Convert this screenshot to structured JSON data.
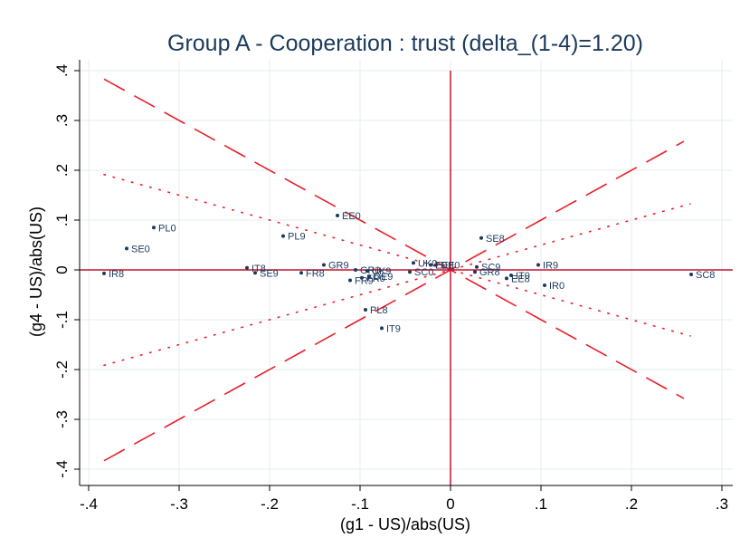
{
  "chart_data": {
    "type": "scatter",
    "title": "Group A - Cooperation : trust (delta_(1-4)=1.20)",
    "xlabel": "(g1 - US)/abs(US)",
    "ylabel": "(g4 - US)/abs(US)",
    "xlim": [
      -0.4,
      0.3
    ],
    "ylim": [
      -0.4,
      0.4
    ],
    "x_ticks": [
      -0.4,
      -0.3,
      -0.2,
      -0.1,
      0,
      0.1,
      0.2,
      0.3
    ],
    "y_ticks": [
      -0.4,
      -0.3,
      -0.2,
      -0.1,
      0,
      0.1,
      0.2,
      0.3,
      0.4
    ],
    "x_tick_labels": [
      "-.4",
      "-.3",
      "-.2",
      "-.1",
      "0",
      ".1",
      ".2",
      ".3"
    ],
    "y_tick_labels": [
      "-.4",
      "-.3",
      "-.2",
      "-.1",
      "0",
      ".1",
      ".2",
      ".3",
      ".4"
    ],
    "grid": true,
    "legend": "none",
    "colors": {
      "title": "#1b3a5c",
      "points": "#1b3a5c",
      "ref_lines": "#e8202a",
      "axis_cross": "#c8102e",
      "grid": "#e4eeee"
    },
    "reference_lines": {
      "dashed_slopes": [
        1,
        -1
      ],
      "dotted_slopes": [
        0.5,
        -0.5
      ],
      "x_range": [
        -0.383,
        0.258
      ],
      "dotted_x_range": [
        -0.383,
        0.265
      ]
    },
    "points": [
      {
        "label": "IR8",
        "x": -0.383,
        "y": -0.007
      },
      {
        "label": "SE0",
        "x": -0.358,
        "y": 0.043
      },
      {
        "label": "PL0",
        "x": -0.328,
        "y": 0.085
      },
      {
        "label": "IT8",
        "x": -0.225,
        "y": 0.004
      },
      {
        "label": "SE9",
        "x": -0.216,
        "y": -0.006
      },
      {
        "label": "PL9",
        "x": -0.185,
        "y": 0.068
      },
      {
        "label": "FR8",
        "x": -0.165,
        "y": -0.006
      },
      {
        "label": "GR9",
        "x": -0.14,
        "y": 0.01
      },
      {
        "label": "EE0",
        "x": -0.125,
        "y": 0.109
      },
      {
        "label": "FR9",
        "x": -0.111,
        "y": -0.021
      },
      {
        "label": "GR0",
        "x": -0.105,
        "y": 0.0
      },
      {
        "label": "UK9",
        "x": -0.092,
        "y": -0.002
      },
      {
        "label": "FR0",
        "x": -0.098,
        "y": -0.016
      },
      {
        "label": "PL8",
        "x": -0.094,
        "y": -0.08
      },
      {
        "label": "DE9",
        "x": -0.09,
        "y": -0.013
      },
      {
        "label": "IT9",
        "x": -0.076,
        "y": -0.117
      },
      {
        "label": "SC0",
        "x": -0.045,
        "y": -0.004
      },
      {
        "label": "UK0",
        "x": -0.041,
        "y": 0.014
      },
      {
        "label": "EE8",
        "x": -0.022,
        "y": 0.01
      },
      {
        "label": "DE0",
        "x": -0.016,
        "y": 0.01
      },
      {
        "label": "SE8",
        "x": 0.034,
        "y": 0.064
      },
      {
        "label": "SC9",
        "x": 0.029,
        "y": 0.006
      },
      {
        "label": "GR8",
        "x": 0.027,
        "y": -0.004
      },
      {
        "label": "IT0",
        "x": 0.067,
        "y": -0.011
      },
      {
        "label": "EE8",
        "x": 0.062,
        "y": -0.017
      },
      {
        "label": "IR9",
        "x": 0.097,
        "y": 0.01
      },
      {
        "label": "IR0",
        "x": 0.104,
        "y": -0.031
      },
      {
        "label": "SC8",
        "x": 0.266,
        "y": -0.009
      }
    ]
  }
}
